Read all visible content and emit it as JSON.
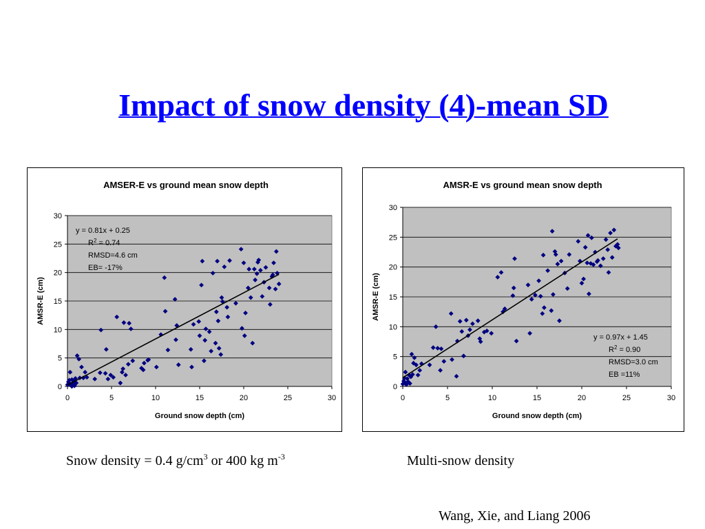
{
  "slide": {
    "title": "Impact of snow density (4)-mean SD",
    "caption_left": {
      "part1": "Snow density = 0.4 g/cm",
      "sup1": "3",
      "part2": " or 400 kg m",
      "sup2": "-3"
    },
    "caption_right": "Multi-snow density",
    "citation": "Wang, Xie, and Liang 2006"
  },
  "colors": {
    "title": "#0000ff",
    "plot_bg": "#c0c0c0",
    "marker": "#000080",
    "trend_line": "#000000"
  },
  "chart_data": [
    {
      "type": "scatter",
      "title": "AMSER-E vs ground mean snow depth",
      "xlabel": "Ground snow depth (cm)",
      "ylabel": "AMSR-E (cm)",
      "xlim": [
        0,
        30
      ],
      "ylim": [
        0,
        30
      ],
      "xticks": [
        0,
        5,
        10,
        15,
        20,
        25,
        30
      ],
      "yticks": [
        0,
        5,
        10,
        15,
        20,
        25,
        30
      ],
      "grid": "horizontal",
      "marker": "diamond",
      "trendline": {
        "slope": 0.81,
        "intercept": 0.25,
        "x_range": [
          0,
          24
        ]
      },
      "annotations": [
        "y = 0.81x + 0.25",
        "R2 = 0.74",
        "RMSD=4.6 cm",
        "EB= -17%"
      ],
      "annotation_position": "top-left",
      "points": [
        [
          0.0,
          0.3
        ],
        [
          0.1,
          0.8
        ],
        [
          0.2,
          1.1
        ],
        [
          0.3,
          0.5
        ],
        [
          0.3,
          2.5
        ],
        [
          0.4,
          0.2
        ],
        [
          0.5,
          1.2
        ],
        [
          0.6,
          0.6
        ],
        [
          0.7,
          0.9
        ],
        [
          0.8,
          0.3
        ],
        [
          0.9,
          1.4
        ],
        [
          1.0,
          0.6
        ],
        [
          0.5,
          0.0
        ],
        [
          0.2,
          0.4
        ],
        [
          0.8,
          0.1
        ],
        [
          1.1,
          5.4
        ],
        [
          1.3,
          4.8
        ],
        [
          1.4,
          1.5
        ],
        [
          1.6,
          3.4
        ],
        [
          1.8,
          1.5
        ],
        [
          2.0,
          2.5
        ],
        [
          2.2,
          1.6
        ],
        [
          3.1,
          1.3
        ],
        [
          3.7,
          2.4
        ],
        [
          3.8,
          9.9
        ],
        [
          4.3,
          2.3
        ],
        [
          4.4,
          6.5
        ],
        [
          4.6,
          1.3
        ],
        [
          4.9,
          2.0
        ],
        [
          5.2,
          1.6
        ],
        [
          5.6,
          12.2
        ],
        [
          6.0,
          0.6
        ],
        [
          6.2,
          2.5
        ],
        [
          6.3,
          3.1
        ],
        [
          6.4,
          11.2
        ],
        [
          6.6,
          2.0
        ],
        [
          6.9,
          3.9
        ],
        [
          7.0,
          11.1
        ],
        [
          7.2,
          10.1
        ],
        [
          7.4,
          4.5
        ],
        [
          8.4,
          3.2
        ],
        [
          8.6,
          2.9
        ],
        [
          8.7,
          4.1
        ],
        [
          9.1,
          4.6
        ],
        [
          9.2,
          4.7
        ],
        [
          10.1,
          3.4
        ],
        [
          10.6,
          9.1
        ],
        [
          11.0,
          19.1
        ],
        [
          11.1,
          13.2
        ],
        [
          11.4,
          6.4
        ],
        [
          12.2,
          15.3
        ],
        [
          12.3,
          8.2
        ],
        [
          12.4,
          10.7
        ],
        [
          12.6,
          3.8
        ],
        [
          14.0,
          6.5
        ],
        [
          14.1,
          3.4
        ],
        [
          14.3,
          10.9
        ],
        [
          14.9,
          11.4
        ],
        [
          15.0,
          8.9
        ],
        [
          15.2,
          17.8
        ],
        [
          15.3,
          22.0
        ],
        [
          15.5,
          4.5
        ],
        [
          15.6,
          8.1
        ],
        [
          15.7,
          10.1
        ],
        [
          16.1,
          9.6
        ],
        [
          16.3,
          6.2
        ],
        [
          16.5,
          19.9
        ],
        [
          16.8,
          7.6
        ],
        [
          16.9,
          13.1
        ],
        [
          17.0,
          22.0
        ],
        [
          17.1,
          11.5
        ],
        [
          17.2,
          6.7
        ],
        [
          17.4,
          5.6
        ],
        [
          17.5,
          15.6
        ],
        [
          17.6,
          14.9
        ],
        [
          17.8,
          21.0
        ],
        [
          18.1,
          13.9
        ],
        [
          18.2,
          12.2
        ],
        [
          18.4,
          22.1
        ],
        [
          19.1,
          14.6
        ],
        [
          19.7,
          24.1
        ],
        [
          19.8,
          10.2
        ],
        [
          20.0,
          21.7
        ],
        [
          20.1,
          8.9
        ],
        [
          20.2,
          12.9
        ],
        [
          20.5,
          17.3
        ],
        [
          20.6,
          20.6
        ],
        [
          20.8,
          15.6
        ],
        [
          21.0,
          7.6
        ],
        [
          21.2,
          20.6
        ],
        [
          21.3,
          18.7
        ],
        [
          21.5,
          19.8
        ],
        [
          21.6,
          21.8
        ],
        [
          21.7,
          22.2
        ],
        [
          21.9,
          20.4
        ],
        [
          22.1,
          15.8
        ],
        [
          22.3,
          18.3
        ],
        [
          22.5,
          20.9
        ],
        [
          22.9,
          17.3
        ],
        [
          23.0,
          14.4
        ],
        [
          23.2,
          19.3
        ],
        [
          23.3,
          19.6
        ],
        [
          23.4,
          21.7
        ],
        [
          23.6,
          17.1
        ],
        [
          23.7,
          23.7
        ],
        [
          23.8,
          19.9
        ],
        [
          24.0,
          18.0
        ]
      ]
    },
    {
      "type": "scatter",
      "title": "AMSR-E vs ground mean snow depth",
      "xlabel": "Ground snow depth (cm)",
      "ylabel": "AMSR-E (cm)",
      "xlim": [
        0,
        30
      ],
      "ylim": [
        0,
        30
      ],
      "xticks": [
        0,
        5,
        10,
        15,
        20,
        25,
        30
      ],
      "yticks": [
        0,
        5,
        10,
        15,
        20,
        25,
        30
      ],
      "grid": "horizontal",
      "marker": "diamond",
      "trendline": {
        "slope": 0.97,
        "intercept": 1.45,
        "x_range": [
          0,
          24
        ]
      },
      "annotations": [
        "y = 0.97x + 1.45",
        "R2 = 0.90",
        "RMSD=3.0 cm",
        "EB =11%"
      ],
      "annotation_position": "bottom-right",
      "points": [
        [
          0.0,
          0.4
        ],
        [
          0.1,
          0.9
        ],
        [
          0.2,
          1.4
        ],
        [
          0.3,
          0.6
        ],
        [
          0.3,
          2.4
        ],
        [
          0.4,
          0.3
        ],
        [
          0.5,
          1.3
        ],
        [
          0.6,
          0.8
        ],
        [
          0.7,
          1.9
        ],
        [
          0.8,
          0.5
        ],
        [
          0.9,
          1.6
        ],
        [
          1.0,
          5.4
        ],
        [
          1.1,
          2.0
        ],
        [
          1.2,
          3.9
        ],
        [
          1.3,
          4.8
        ],
        [
          1.5,
          3.6
        ],
        [
          1.7,
          1.9
        ],
        [
          1.9,
          2.7
        ],
        [
          2.1,
          3.8
        ],
        [
          3.0,
          3.6
        ],
        [
          3.4,
          6.5
        ],
        [
          3.7,
          10.0
        ],
        [
          3.9,
          6.4
        ],
        [
          4.2,
          2.7
        ],
        [
          4.3,
          6.3
        ],
        [
          4.6,
          4.2
        ],
        [
          5.4,
          12.2
        ],
        [
          5.5,
          4.5
        ],
        [
          6.0,
          1.7
        ],
        [
          6.1,
          7.6
        ],
        [
          6.4,
          10.9
        ],
        [
          6.6,
          9.2
        ],
        [
          6.8,
          5.1
        ],
        [
          7.1,
          11.1
        ],
        [
          7.3,
          8.5
        ],
        [
          7.5,
          9.5
        ],
        [
          7.8,
          10.5
        ],
        [
          8.4,
          11.0
        ],
        [
          8.6,
          8.0
        ],
        [
          8.7,
          7.5
        ],
        [
          9.1,
          9.1
        ],
        [
          9.4,
          9.3
        ],
        [
          9.9,
          8.9
        ],
        [
          10.6,
          18.3
        ],
        [
          11.0,
          19.1
        ],
        [
          11.2,
          12.5
        ],
        [
          11.4,
          13.0
        ],
        [
          12.3,
          15.2
        ],
        [
          12.4,
          16.5
        ],
        [
          12.5,
          21.4
        ],
        [
          12.7,
          7.6
        ],
        [
          14.0,
          17.0
        ],
        [
          14.2,
          8.9
        ],
        [
          14.4,
          14.6
        ],
        [
          14.8,
          15.3
        ],
        [
          15.2,
          17.7
        ],
        [
          15.4,
          15.1
        ],
        [
          15.6,
          12.2
        ],
        [
          15.7,
          22.0
        ],
        [
          15.8,
          13.2
        ],
        [
          16.2,
          19.4
        ],
        [
          16.6,
          12.7
        ],
        [
          16.7,
          26.0
        ],
        [
          16.8,
          15.4
        ],
        [
          17.0,
          22.6
        ],
        [
          17.1,
          22.1
        ],
        [
          17.3,
          20.5
        ],
        [
          17.5,
          11.0
        ],
        [
          17.7,
          21.0
        ],
        [
          18.1,
          19.0
        ],
        [
          18.4,
          16.4
        ],
        [
          18.6,
          22.1
        ],
        [
          19.6,
          24.3
        ],
        [
          19.8,
          21.0
        ],
        [
          20.0,
          17.3
        ],
        [
          20.2,
          18.0
        ],
        [
          20.4,
          23.3
        ],
        [
          20.6,
          20.7
        ],
        [
          20.7,
          25.3
        ],
        [
          20.8,
          15.5
        ],
        [
          21.0,
          20.6
        ],
        [
          21.1,
          24.9
        ],
        [
          21.3,
          20.4
        ],
        [
          21.5,
          22.5
        ],
        [
          21.7,
          20.9
        ],
        [
          21.8,
          21.1
        ],
        [
          22.1,
          20.2
        ],
        [
          22.4,
          21.4
        ],
        [
          22.7,
          24.6
        ],
        [
          22.9,
          22.9
        ],
        [
          23.0,
          19.1
        ],
        [
          23.2,
          25.7
        ],
        [
          23.4,
          21.6
        ],
        [
          23.6,
          26.2
        ],
        [
          23.8,
          23.5
        ],
        [
          24.0,
          23.8
        ],
        [
          24.1,
          23.2
        ]
      ]
    }
  ]
}
